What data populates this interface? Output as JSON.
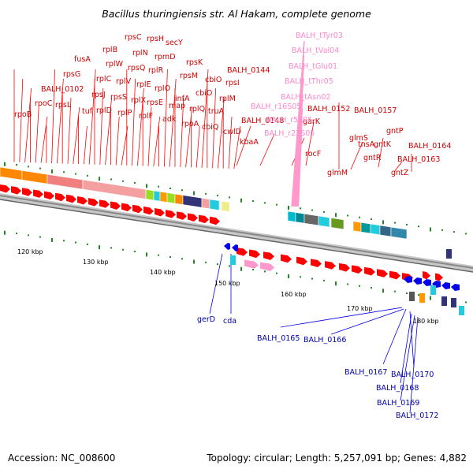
{
  "title": "Bacillus thuringiensis str. Al Hakam, complete genome",
  "footer": {
    "accession": "Accession: NC_008600",
    "summary": "Topology: circular; Length: 5,257,091 bp; Genes: 4,882"
  },
  "colors": {
    "forward_gene": "#ff0000",
    "reverse_gene": "#0000ee",
    "rna": "#ff99cc",
    "forward_label": "#cc0000",
    "reverse_label": "#0000aa",
    "rna_label": "#ff88cc"
  },
  "ruler_ticks": [
    "120 kbp",
    "130 kbp",
    "140 kbp",
    "150 kbp",
    "160 kbp",
    "170 kbp",
    "180 kbp"
  ],
  "forward_labels": [
    "rpsC",
    "rpsH",
    "secY",
    "rplB",
    "rplN",
    "rpmD",
    "rplW",
    "rpsQ",
    "rplR",
    "rpsK",
    "fusA",
    "rplC",
    "rplV",
    "rplE",
    "rplO",
    "rpsM",
    "rpsG",
    "rpsJ",
    "rpsS",
    "rplX",
    "infA",
    "cbiO",
    "BALH_0102",
    "rplD",
    "rplP",
    "rpsE",
    "map",
    "cbiO",
    "rpsI",
    "BALH_0144",
    "rpoC",
    "rpsL",
    "tuf",
    "rplF",
    "adk",
    "rpoA",
    "rplQ",
    "truA",
    "rplM",
    "BALH_0148",
    "rpoB",
    "cbiQ",
    "cwlD",
    "kbaA",
    "garK",
    "BALH_0152",
    "BALH_0157",
    "tnsA",
    "rocF",
    "glmS",
    "glmM",
    "gntP",
    "gntK",
    "gntR",
    "BALH_0164",
    "BALH_0163",
    "gntZ"
  ],
  "rna_labels": [
    "BALH_tTyr03",
    "BALH_tVal04",
    "BALH_tGlu01",
    "BALH_tThr05",
    "BALH_tAsn02",
    "BALH_r16S05",
    "BALH_r23S05",
    "BALH_r5S05"
  ],
  "reverse_labels": [
    "gerD",
    "cda",
    "BALH_0165",
    "BALH_0166",
    "BALH_0167",
    "BALH_0170",
    "BALH_0168",
    "BALH_0169",
    "BALH_0172"
  ]
}
